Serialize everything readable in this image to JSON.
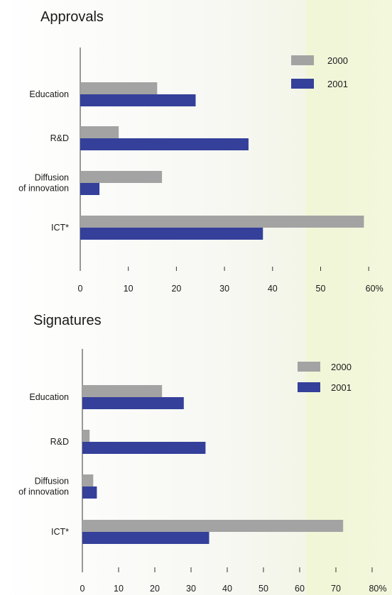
{
  "colors": {
    "series_2000": "#a3a3a3",
    "series_2001": "#34409a",
    "axis": "#333333"
  },
  "chart_data": [
    {
      "type": "bar",
      "orientation": "horizontal",
      "title": "Approvals",
      "categories": [
        "Education",
        "R&D",
        "Diffusion of innovation",
        "ICT*"
      ],
      "category_lines": [
        [
          "Education"
        ],
        [
          "R&D"
        ],
        [
          "Diffusion",
          "of innovation"
        ],
        [
          "ICT*"
        ]
      ],
      "series": [
        {
          "name": "2000",
          "values": [
            16,
            8,
            17,
            59
          ]
        },
        {
          "name": "2001",
          "values": [
            24,
            35,
            4,
            38
          ]
        }
      ],
      "xlim": [
        0,
        60
      ],
      "ticks": [
        0,
        10,
        20,
        30,
        40,
        50,
        60
      ],
      "tick_labels": [
        "0",
        "10",
        "20",
        "30",
        "40",
        "50",
        "60%"
      ],
      "legend": "top-right",
      "grid": false
    },
    {
      "type": "bar",
      "orientation": "horizontal",
      "title": "Signatures",
      "categories": [
        "Education",
        "R&D",
        "Diffusion of innovation",
        "ICT*"
      ],
      "category_lines": [
        [
          "Education"
        ],
        [
          "R&D"
        ],
        [
          "Diffusion",
          "of innovation"
        ],
        [
          "ICT*"
        ]
      ],
      "series": [
        {
          "name": "2000",
          "values": [
            22,
            2,
            3,
            72
          ]
        },
        {
          "name": "2001",
          "values": [
            28,
            34,
            4,
            35
          ]
        }
      ],
      "xlim": [
        0,
        80
      ],
      "ticks": [
        0,
        10,
        20,
        30,
        40,
        50,
        60,
        70,
        80
      ],
      "tick_labels": [
        "0",
        "10",
        "20",
        "30",
        "40",
        "50",
        "60",
        "70",
        "80%"
      ],
      "legend": "top-right",
      "grid": false
    }
  ]
}
